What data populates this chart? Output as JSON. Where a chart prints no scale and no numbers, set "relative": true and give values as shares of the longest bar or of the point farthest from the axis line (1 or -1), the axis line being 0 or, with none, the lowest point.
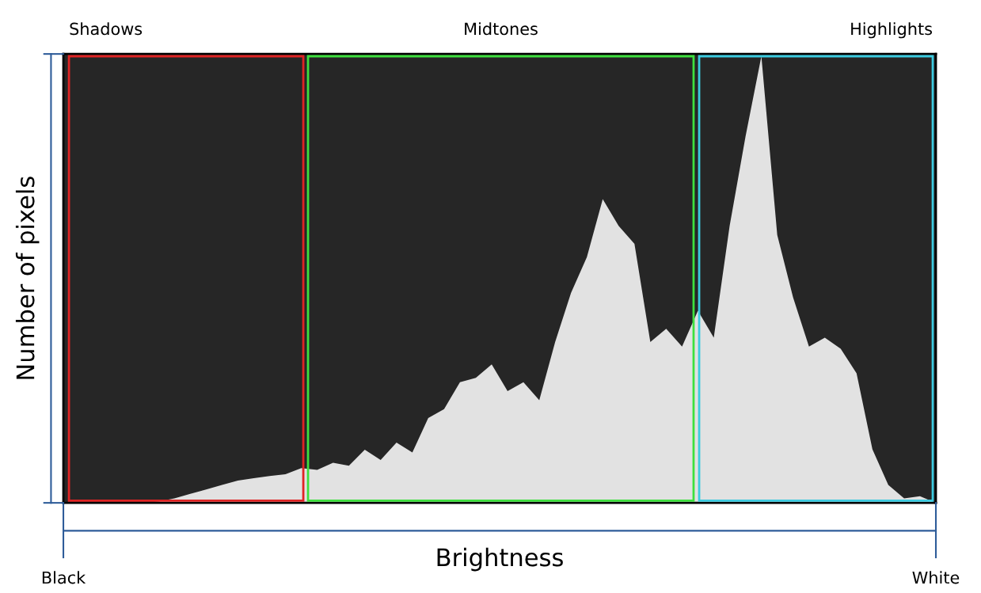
{
  "chart_data": {
    "type": "area",
    "relative": true,
    "xlabel": "Brightness",
    "ylabel": "Number of pixels",
    "categories": [
      "Black",
      null,
      null,
      null,
      null,
      null,
      null,
      null,
      null,
      null,
      null,
      null,
      null,
      null,
      null,
      null,
      null,
      null,
      null,
      null,
      null,
      null,
      null,
      null,
      null,
      null,
      null,
      null,
      null,
      null,
      null,
      null,
      null,
      null,
      null,
      null,
      null,
      null,
      null,
      null,
      null,
      null,
      null,
      null,
      null,
      null,
      null,
      null,
      null,
      null,
      null,
      null,
      null,
      null,
      null,
      "White"
    ],
    "series": [
      {
        "color": "#e2e2e2",
        "values": [
          0,
          0,
          0,
          0,
          0,
          0,
          0.003,
          0.01,
          0.02,
          0.03,
          0.04,
          0.05,
          0.055,
          0.06,
          0.064,
          0.078,
          0.074,
          0.09,
          0.083,
          0.119,
          0.096,
          0.135,
          0.113,
          0.19,
          0.21,
          0.27,
          0.28,
          0.31,
          0.25,
          0.27,
          0.23,
          0.36,
          0.47,
          0.55,
          0.68,
          0.62,
          0.58,
          0.36,
          0.39,
          0.35,
          0.43,
          0.37,
          0.62,
          0.82,
          1,
          0.6,
          0.46,
          0.35,
          0.37,
          0.345,
          0.29,
          0.12,
          0.04,
          0.01,
          0.015,
          0
        ]
      }
    ],
    "annotations": [
      "Shadows",
      "Midtones",
      "Highlights"
    ]
  }
}
